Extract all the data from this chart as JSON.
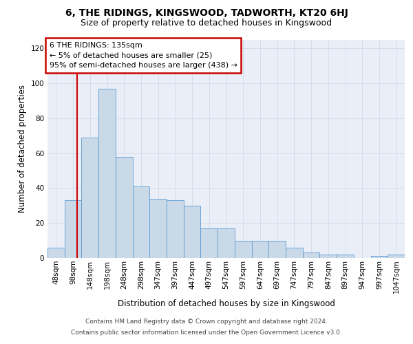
{
  "title": "6, THE RIDINGS, KINGSWOOD, TADWORTH, KT20 6HJ",
  "subtitle": "Size of property relative to detached houses in Kingswood",
  "xlabel": "Distribution of detached houses by size in Kingswood",
  "ylabel": "Number of detached properties",
  "bar_labels": [
    "48sqm",
    "98sqm",
    "148sqm",
    "198sqm",
    "248sqm",
    "298sqm",
    "347sqm",
    "397sqm",
    "447sqm",
    "497sqm",
    "547sqm",
    "597sqm",
    "647sqm",
    "697sqm",
    "747sqm",
    "797sqm",
    "847sqm",
    "897sqm",
    "947sqm",
    "997sqm",
    "1047sqm"
  ],
  "bar_values": [
    6,
    33,
    69,
    97,
    58,
    41,
    34,
    33,
    30,
    17,
    17,
    10,
    10,
    10,
    6,
    3,
    2,
    2,
    0,
    1,
    2
  ],
  "bar_color": "#c9d9e8",
  "bar_edge_color": "#5b9bd5",
  "grid_color": "#d5dded",
  "background_color": "#eaeff7",
  "ylim": [
    0,
    125
  ],
  "yticks": [
    0,
    20,
    40,
    60,
    80,
    100,
    120
  ],
  "property_line_color": "#cc0000",
  "annotation_text": "6 THE RIDINGS: 135sqm\n← 5% of detached houses are smaller (25)\n95% of semi-detached houses are larger (438) →",
  "annotation_box_color": "#ffffff",
  "annotation_box_edge": "#cc0000",
  "footer_line1": "Contains HM Land Registry data © Crown copyright and database right 2024.",
  "footer_line2": "Contains public sector information licensed under the Open Government Licence v3.0.",
  "title_fontsize": 10,
  "subtitle_fontsize": 9,
  "xlabel_fontsize": 8.5,
  "ylabel_fontsize": 8.5,
  "tick_fontsize": 7.5,
  "annotation_fontsize": 8,
  "footer_fontsize": 6.5
}
